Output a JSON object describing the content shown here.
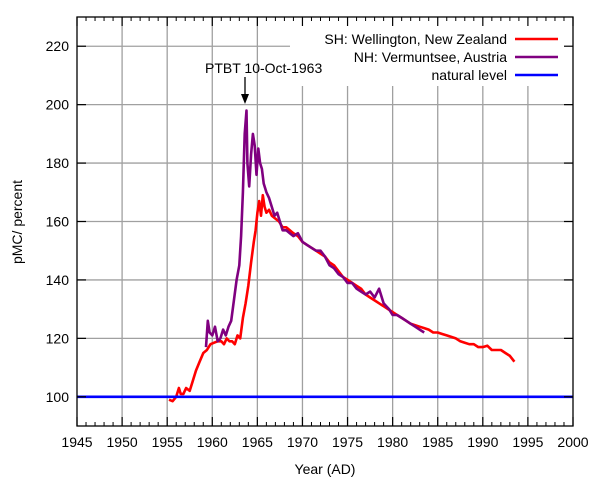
{
  "chart_data": {
    "type": "line",
    "title": "",
    "xlabel": "Year (AD)",
    "ylabel": "pMC/ percent",
    "xlim": [
      1945,
      2000
    ],
    "ylim": [
      90,
      230
    ],
    "x_ticks": [
      1945,
      1950,
      1955,
      1960,
      1965,
      1970,
      1975,
      1980,
      1985,
      1990,
      1995,
      2000
    ],
    "y_ticks": [
      100,
      120,
      140,
      160,
      180,
      200,
      220
    ],
    "grid": true,
    "legend_position": "top-right",
    "series": [
      {
        "name": "SH: Wellington, New Zealand",
        "color": "#ff0000",
        "x": [
          1955.2,
          1955.6,
          1956.0,
          1956.3,
          1956.5,
          1956.8,
          1957.1,
          1957.5,
          1957.9,
          1958.2,
          1958.6,
          1959.0,
          1959.4,
          1959.8,
          1960.2,
          1960.6,
          1961.0,
          1961.3,
          1961.6,
          1961.9,
          1962.2,
          1962.5,
          1962.8,
          1963.1,
          1963.4,
          1963.7,
          1964.0,
          1964.3,
          1964.6,
          1964.8,
          1965.0,
          1965.2,
          1965.4,
          1965.6,
          1965.8,
          1966.0,
          1966.3,
          1966.6,
          1967.0,
          1967.4,
          1967.8,
          1968.2,
          1968.6,
          1969.0,
          1969.5,
          1970.0,
          1970.5,
          1971.0,
          1971.5,
          1972.0,
          1972.5,
          1973.0,
          1973.5,
          1974.0,
          1974.5,
          1975.0,
          1975.5,
          1976.0,
          1976.5,
          1977.0,
          1977.5,
          1978.0,
          1978.5,
          1979.0,
          1979.5,
          1980.0,
          1980.5,
          1981.0,
          1981.5,
          1982.0,
          1982.5,
          1983.0,
          1983.5,
          1984.0,
          1984.5,
          1985.0,
          1985.5,
          1986.0,
          1986.5,
          1987.0,
          1987.5,
          1988.0,
          1988.5,
          1989.0,
          1989.5,
          1990.0,
          1990.5,
          1991.0,
          1991.5,
          1992.0,
          1992.5,
          1993.0,
          1993.5
        ],
        "values": [
          99,
          98.5,
          100,
          103,
          101,
          101,
          103,
          102,
          106,
          109,
          112,
          115,
          116,
          118,
          118.5,
          119,
          119,
          118,
          120,
          119,
          119,
          118,
          121,
          120,
          127,
          132,
          138,
          146,
          153,
          157,
          163,
          167,
          162,
          169,
          165,
          163,
          164,
          162,
          161,
          160,
          158,
          158,
          157,
          156,
          155,
          153,
          152,
          151,
          150,
          149,
          148,
          146,
          145,
          143,
          141,
          140,
          139,
          138,
          137,
          135,
          134,
          133,
          132,
          131,
          130,
          129,
          128,
          127,
          126,
          125,
          124.5,
          124,
          123.5,
          123,
          122,
          122,
          121.5,
          121,
          120.5,
          120,
          119,
          118.5,
          118,
          118,
          117,
          117,
          117.5,
          116,
          116,
          116,
          115,
          114,
          112
        ]
      },
      {
        "name": "NH: Vermuntsee, Austria",
        "color": "#800080",
        "x": [
          1959.3,
          1959.5,
          1959.7,
          1960.0,
          1960.3,
          1960.6,
          1960.9,
          1961.2,
          1961.5,
          1961.8,
          1962.1,
          1962.4,
          1962.7,
          1963.0,
          1963.2,
          1963.4,
          1963.6,
          1963.8,
          1963.9,
          1964.1,
          1964.3,
          1964.5,
          1964.7,
          1964.9,
          1965.1,
          1965.3,
          1965.5,
          1965.7,
          1966.0,
          1966.3,
          1966.6,
          1966.9,
          1967.2,
          1967.5,
          1967.8,
          1968.2,
          1968.6,
          1969.0,
          1969.5,
          1970.0,
          1970.5,
          1971.0,
          1971.5,
          1972.0,
          1972.5,
          1973.0,
          1973.5,
          1974.0,
          1974.5,
          1975.0,
          1975.5,
          1976.0,
          1976.5,
          1977.0,
          1977.5,
          1978.0,
          1978.5,
          1979.0,
          1979.3,
          1979.6,
          1980.0,
          1980.5,
          1981.0,
          1981.5,
          1982.0,
          1982.5,
          1983.0,
          1983.5
        ],
        "values": [
          117,
          126,
          122,
          121,
          124,
          119,
          120,
          123,
          121,
          124,
          126,
          133,
          140,
          145,
          155,
          170,
          190,
          198,
          180,
          172,
          183,
          190,
          186,
          176,
          185,
          180,
          178,
          173,
          170,
          168,
          165,
          162,
          163,
          160,
          157,
          157,
          156,
          155,
          156,
          153,
          152,
          151,
          150,
          150,
          148,
          145,
          144,
          142,
          141,
          139,
          139,
          137,
          136,
          135,
          136,
          134,
          137,
          132,
          131,
          130,
          128,
          128,
          127,
          126,
          125,
          124,
          123,
          122
        ]
      },
      {
        "name": "natural level",
        "color": "#0000ff",
        "x": [
          1945,
          2000
        ],
        "values": [
          100,
          100
        ]
      }
    ],
    "annotations": [
      {
        "text": "PTBT 10-Oct-1963",
        "x": 1963.8,
        "y": 199,
        "arrow": true
      }
    ]
  },
  "labels": {
    "xlabel": "Year (AD)",
    "ylabel": "pMC/ percent",
    "annotation": "PTBT 10-Oct-1963",
    "legend": [
      "SH: Wellington, New Zealand",
      "NH: Vermuntsee, Austria",
      "natural level"
    ]
  }
}
